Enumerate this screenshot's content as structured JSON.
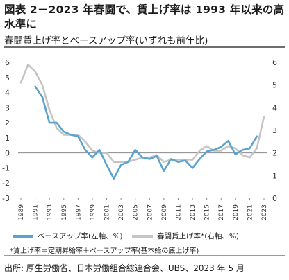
{
  "header": {
    "title": "図表 2－2023 年春闘で、賃上げ率は 1993 年以来の高水準に",
    "subtitle": "春闘賃上げ率とベースアップ率(いずれも前年比)"
  },
  "legend": {
    "left_label": "ベースアップ率(左軸、%)",
    "right_label": "春闘賃上げ率*(右軸、%)"
  },
  "footnote": "*賃上げ率＝定期昇給率＋ベースアップ率(基本給の底上げ率)",
  "source": "出所: 厚生労働省、日本労働組合総連合会、UBS、2023 年 5 月",
  "chart_data": {
    "type": "line",
    "x": [
      1989,
      1990,
      1991,
      1992,
      1993,
      1994,
      1995,
      1996,
      1997,
      1998,
      1999,
      2000,
      2001,
      2002,
      2003,
      2004,
      2005,
      2006,
      2007,
      2008,
      2009,
      2010,
      2011,
      2012,
      2013,
      2014,
      2015,
      2016,
      2017,
      2018,
      2019,
      2020,
      2021,
      2022,
      2023
    ],
    "x_tick_labels": [
      "1989",
      "1991",
      "1993",
      "1995",
      "1997",
      "1999",
      "2001",
      "2003",
      "2005",
      "2007",
      "2009",
      "2011",
      "2013",
      "2015",
      "2017",
      "2019",
      "2021",
      "2023"
    ],
    "y_left": {
      "lim": [
        -3,
        6
      ],
      "ticks": [
        "-3",
        "-2",
        "-1",
        "0",
        "1",
        "2",
        "3",
        "4",
        "5",
        "6"
      ]
    },
    "y_right": {
      "lim": [
        0,
        6
      ],
      "ticks": [
        "0",
        "1",
        "2",
        "3",
        "4",
        "5",
        "6"
      ]
    },
    "series": [
      {
        "name": "ベースアップ率(左軸、%)",
        "axis": "left",
        "color": "#5ba3cf",
        "values": [
          null,
          null,
          4.4,
          3.7,
          2.0,
          2.0,
          1.4,
          1.2,
          1.1,
          0.2,
          -0.3,
          0.2,
          -0.8,
          -1.7,
          -0.8,
          -0.6,
          0.2,
          -0.3,
          -0.4,
          -0.2,
          -1.2,
          -0.4,
          -0.6,
          -0.5,
          -1.0,
          -0.4,
          0.1,
          0.2,
          0.4,
          0.8,
          -0.1,
          0.2,
          0.3,
          1.1,
          null
        ]
      },
      {
        "name": "春闘賃上げ率*(右軸、%)",
        "axis": "right",
        "color": "#c4c4c4",
        "values": [
          5.1,
          5.9,
          5.6,
          5.0,
          3.9,
          3.1,
          2.8,
          2.8,
          2.8,
          2.5,
          2.1,
          2.0,
          2.0,
          1.6,
          1.6,
          1.6,
          1.7,
          1.8,
          1.8,
          1.9,
          1.6,
          1.7,
          1.7,
          1.7,
          1.7,
          2.1,
          2.3,
          2.1,
          2.1,
          2.3,
          2.2,
          1.9,
          1.8,
          2.2,
          3.6
        ]
      }
    ],
    "grid": false
  }
}
